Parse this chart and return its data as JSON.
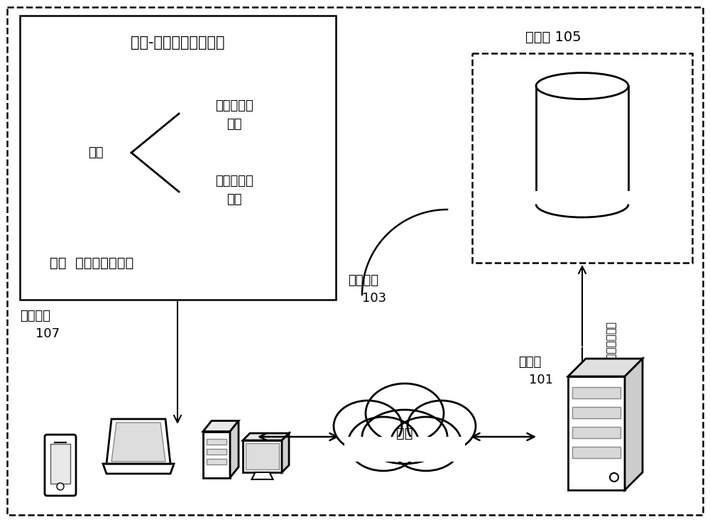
{
  "bg_color": "#ffffff",
  "title": "抗体-抗原的亲和力预测",
  "input_label": "输入",
  "input_upper": "抗原氨基酸\n序列",
  "input_lower": "抗体氨基酸\n序列",
  "output_label": "输出  结合亲和力参数",
  "app_label": "应用程序",
  "app_number": "107",
  "db_label": "数据库 105",
  "terminal_label": "终端设备",
  "terminal_number": "103",
  "server_label": "服务器",
  "server_number": "101",
  "network_label": "网络",
  "vertical_arrow_text": "模板数据处理"
}
